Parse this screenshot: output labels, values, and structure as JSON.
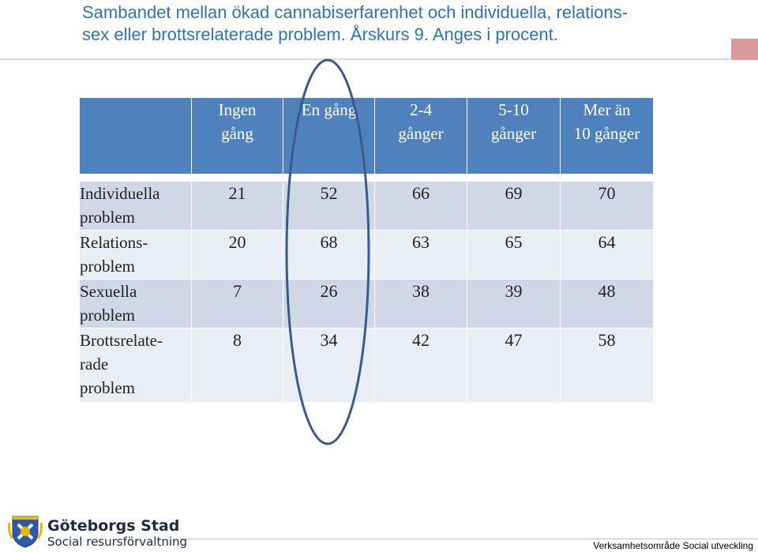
{
  "title": {
    "line1": "Sambandet mellan ökad cannabiserfarenhet och individuella, relations-",
    "line2": "sex eller brottsrelaterade problem. Årskurs 9. Anges i procent."
  },
  "table": {
    "columns": [
      {
        "line1": "Ingen",
        "line2": "gång"
      },
      {
        "line1": "En gång",
        "line2": ""
      },
      {
        "line1": "2-4",
        "line2": "gånger"
      },
      {
        "line1": "5-10",
        "line2": "gånger"
      },
      {
        "line1": "Mer än",
        "line2": "10 gånger"
      }
    ],
    "rows": [
      {
        "label1": "Individuella",
        "label2": "problem",
        "label3": "",
        "values": [
          "21",
          "52",
          "66",
          "69",
          "70"
        ]
      },
      {
        "label1": "Relations-",
        "label2": "problem",
        "label3": "",
        "values": [
          "20",
          "68",
          "63",
          "65",
          "64"
        ]
      },
      {
        "label1": "Sexuella",
        "label2": "problem",
        "label3": "",
        "values": [
          "7",
          "26",
          "38",
          "39",
          "48"
        ]
      },
      {
        "label1": "Brottsrelate-",
        "label2": "rade",
        "label3": "problem",
        "values": [
          "8",
          "34",
          "42",
          "47",
          "58"
        ]
      }
    ]
  },
  "footer": {
    "org_name": "Göteborgs Stad",
    "org_sub": "Social resursförvaltning",
    "right_text": "Verksamhetsområde Social utveckling"
  },
  "colors": {
    "title": "#2e74b5",
    "header_fill": "#4f81bd",
    "row_dark": "#d0d8e8",
    "row_light": "#e9edf4",
    "ellipse_stroke": "#3a5a8c"
  }
}
